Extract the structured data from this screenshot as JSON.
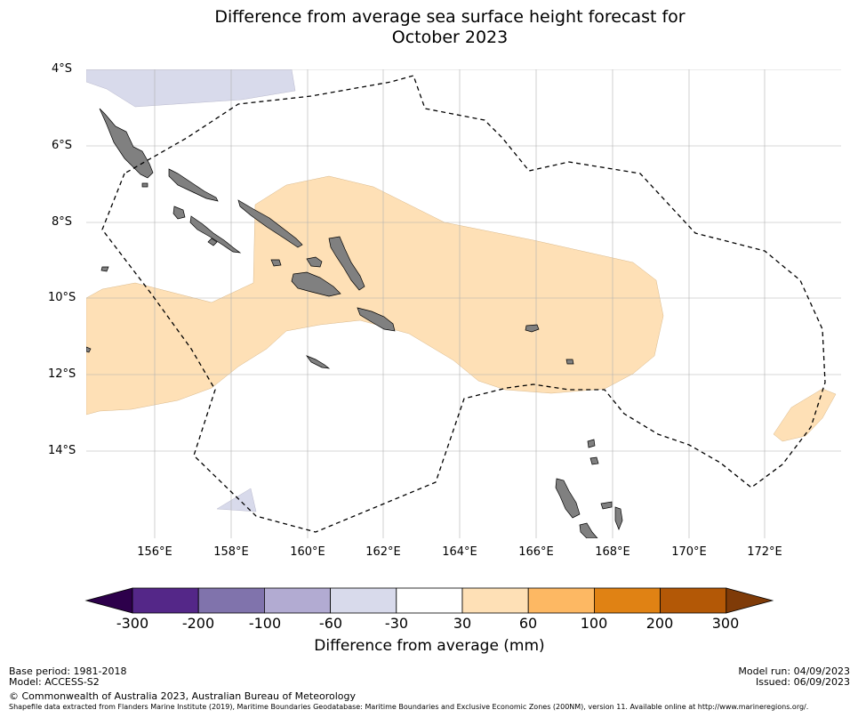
{
  "title": {
    "line1": "Difference from average sea surface height forecast for",
    "line2": "October 2023"
  },
  "axes": {
    "lat_labels": [
      "4°S",
      "6°S",
      "8°S",
      "10°S",
      "12°S",
      "14°S"
    ],
    "lon_labels": [
      "156°E",
      "158°E",
      "160°E",
      "162°E",
      "164°E",
      "166°E",
      "168°E",
      "170°E",
      "172°E"
    ]
  },
  "colorbar": {
    "ticks": [
      "-300",
      "-200",
      "-100",
      "-60",
      "-30",
      "30",
      "60",
      "100",
      "200",
      "300"
    ],
    "colors": [
      "#2d004b",
      "#542788",
      "#8073ac",
      "#b2abd2",
      "#d8daeb",
      "#ffffff",
      "#fee0b6",
      "#fdb863",
      "#e08214",
      "#b35806",
      "#7f3b08"
    ],
    "label": "Difference from average (mm)"
  },
  "colors": {
    "land": "#808080",
    "positive_anomaly": "#fee0b6",
    "negative_anomaly": "#d8daeb",
    "grid": "#b0b0b0",
    "eez_boundary": "#000000"
  },
  "footer": {
    "base_period": "Base period: 1981-2018",
    "model": "Model: ACCESS-S2",
    "model_run": "Model run: 04/09/2023",
    "issued": "Issued: 06/09/2023",
    "copyright": "© Commonwealth of Australia 2023, Australian Bureau of Meteorology",
    "source_note": "Shapefile data extracted from Flanders Marine Institute (2019), Maritime Boundaries Geodatabase: Maritime Boundaries and Exclusive Economic Zones (200NM), version 11. Available online at http://www.marineregions.org/."
  }
}
